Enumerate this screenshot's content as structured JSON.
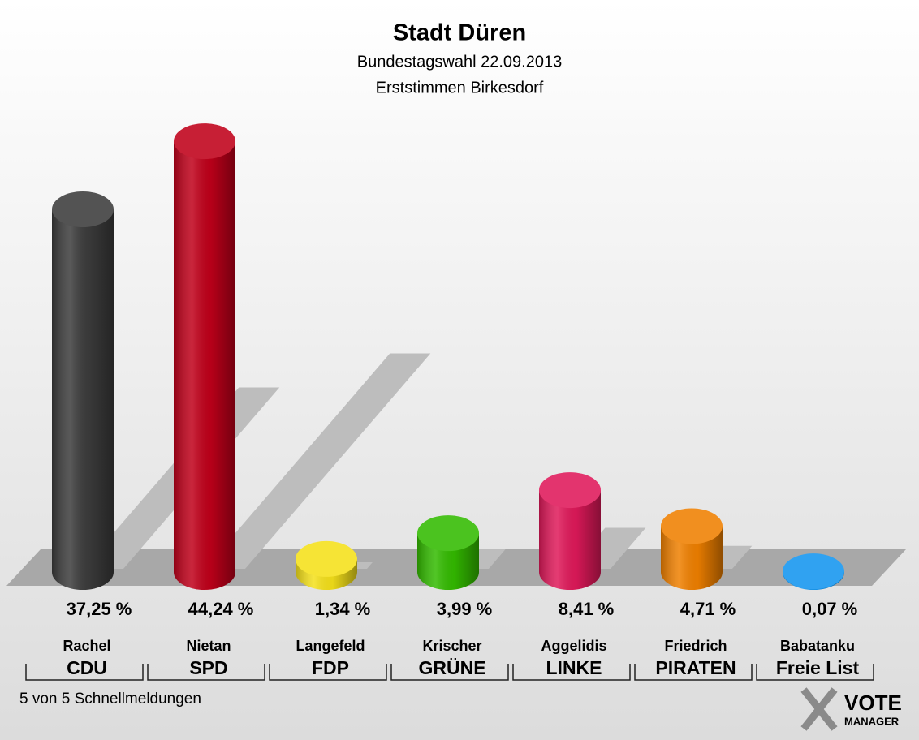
{
  "chart_data": {
    "type": "bar",
    "title": "Stadt Düren",
    "subtitle": [
      "Bundestagswahl 22.09.2013",
      "Erststimmen Birkesdorf"
    ],
    "categories": [
      "Rachel",
      "Nietan",
      "Langefeld",
      "Krischer",
      "Aggelidis",
      "Friedrich",
      "Babatanku"
    ],
    "parties": [
      "CDU",
      "SPD",
      "FDP",
      "GRÜNE",
      "LINKE",
      "PIRATEN",
      "Freie List"
    ],
    "values": [
      37.25,
      44.24,
      1.34,
      3.99,
      8.41,
      4.71,
      0.07
    ],
    "value_labels": [
      "37,25 %",
      "44,24 %",
      "1,34 %",
      "3,99 %",
      "8,41 %",
      "4,71 %",
      "0,07 %"
    ],
    "colors": [
      "#3c3c3c",
      "#c0001a",
      "#f5e11a",
      "#33bb00",
      "#e0195a",
      "#f08000",
      "#1496f0"
    ]
  },
  "footer": "5 von 5 Schnellmeldungen",
  "logo": {
    "title": "VOTE",
    "subtitle": "MANAGER"
  }
}
